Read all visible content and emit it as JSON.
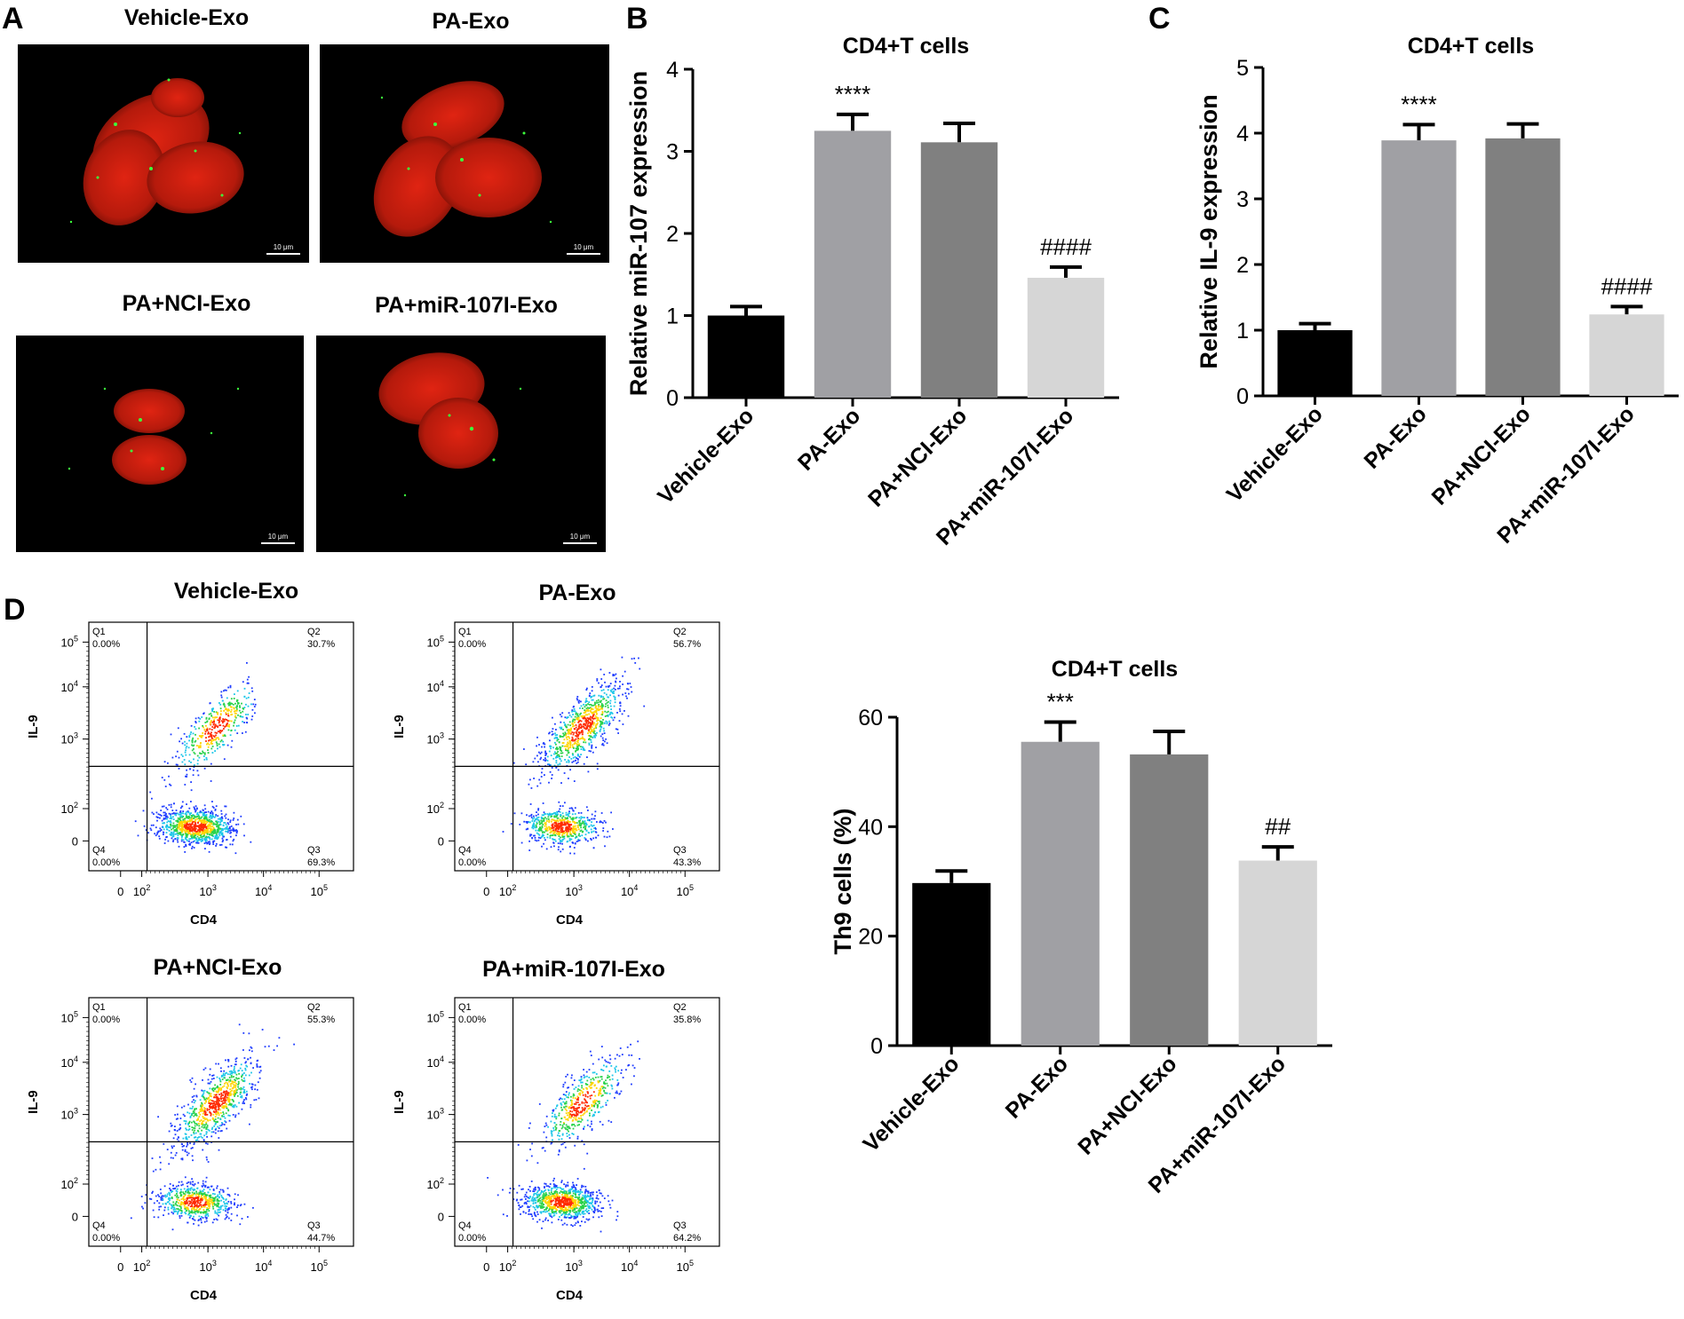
{
  "panels": {
    "A": {
      "letter": "A",
      "images": [
        {
          "title": "Vehicle-Exo",
          "scale_bar": "10 μm"
        },
        {
          "title": "PA-Exo",
          "scale_bar": "10 μm"
        },
        {
          "title": "PA+NCI-Exo",
          "scale_bar": "10 μm"
        },
        {
          "title": "PA+miR-107I-Exo",
          "scale_bar": "10 μm"
        }
      ]
    },
    "B": {
      "letter": "B"
    },
    "C": {
      "letter": "C"
    },
    "D": {
      "letter": "D",
      "flow_plots": [
        {
          "title": "Vehicle-Exo",
          "q1": "0.00%",
          "q2": "30.7%",
          "q3": "69.3%",
          "q4": "0.00%"
        },
        {
          "title": "PA-Exo",
          "q1": "0.00%",
          "q2": "56.7%",
          "q3": "43.3%",
          "q4": "0.00%"
        },
        {
          "title": "PA+NCI-Exo",
          "q1": "0.00%",
          "q2": "55.3%",
          "q3": "44.7%",
          "q4": "0.00%"
        },
        {
          "title": "PA+miR-107I-Exo",
          "q1": "0.00%",
          "q2": "35.8%",
          "q3": "64.2%",
          "q4": "0.00%"
        }
      ],
      "flow_axes": {
        "xlabel": "CD4",
        "ylabel": "IL-9",
        "quadrant_labels": [
          "Q1",
          "Q2",
          "Q3",
          "Q4"
        ],
        "x_ticks": [
          "0",
          "10<sup>2</sup>",
          "10<sup>3</sup>",
          "10<sup>4</sup>",
          "10<sup>5</sup>"
        ],
        "y_ticks": [
          "0",
          "10<sup>2</sup>",
          "10<sup>3</sup>",
          "10<sup>4</sup>",
          "10<sup>5</sup>"
        ]
      }
    }
  },
  "chart_data": [
    {
      "panel": "B",
      "type": "bar",
      "title": "CD4+T cells",
      "xlabel": "",
      "ylabel": "Relative miR-107 expression",
      "categories": [
        "Vehicle-Exo",
        "PA-Exo",
        "PA+NCI-Exo",
        "PA+miR-107I-Exo"
      ],
      "values": [
        1.0,
        3.25,
        3.11,
        1.46
      ],
      "errors": [
        0.11,
        0.2,
        0.23,
        0.13
      ],
      "annotations": [
        "",
        "****",
        "",
        "####"
      ],
      "ylim": [
        0,
        4
      ],
      "yticks": [
        0,
        1,
        2,
        3,
        4
      ],
      "bar_colors": [
        "#000000",
        "#a0a0a4",
        "#808080",
        "#d6d6d6"
      ]
    },
    {
      "panel": "C",
      "type": "bar",
      "title": "CD4+T cells",
      "xlabel": "",
      "ylabel": "Relative IL-9 expression",
      "categories": [
        "Vehicle-Exo",
        "PA-Exo",
        "PA+NCI-Exo",
        "PA+miR-107I-Exo"
      ],
      "values": [
        1.0,
        3.89,
        3.92,
        1.24
      ],
      "errors": [
        0.1,
        0.24,
        0.22,
        0.12
      ],
      "annotations": [
        "",
        "****",
        "",
        "####"
      ],
      "ylim": [
        0,
        5
      ],
      "yticks": [
        0,
        1,
        2,
        3,
        4,
        5
      ],
      "bar_colors": [
        "#000000",
        "#a0a0a4",
        "#808080",
        "#d6d6d6"
      ]
    },
    {
      "panel": "D",
      "type": "bar",
      "title": "CD4+T cells",
      "xlabel": "",
      "ylabel": "Th9 cells (%)",
      "categories": [
        "Vehicle-Exo",
        "PA-Exo",
        "PA+NCI-Exo",
        "PA+miR-107I-Exo"
      ],
      "values": [
        29.7,
        55.5,
        53.2,
        33.8
      ],
      "errors": [
        2.2,
        3.6,
        4.2,
        2.5
      ],
      "annotations": [
        "",
        "***",
        "",
        "##"
      ],
      "ylim": [
        0,
        60
      ],
      "yticks": [
        0,
        20,
        40,
        60
      ],
      "bar_colors": [
        "#000000",
        "#a0a0a4",
        "#808080",
        "#d6d6d6"
      ]
    }
  ]
}
